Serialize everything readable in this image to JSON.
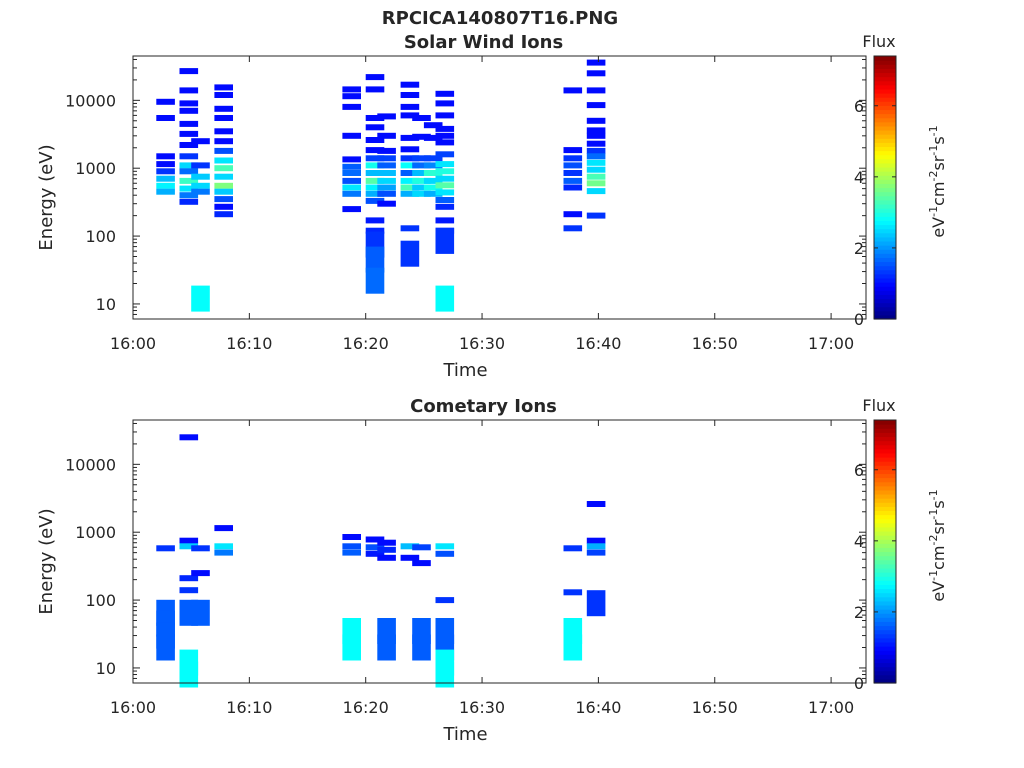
{
  "figure_title": "RPCICA140807T16.PNG",
  "colormap": [
    "#00007f",
    "#0000ff",
    "#007fff",
    "#00ffff",
    "#7fff7f",
    "#ffff00",
    "#ff7f00",
    "#ff0000",
    "#7f0000"
  ],
  "chart_data": [
    {
      "type": "heatmap",
      "title": "Solar Wind Ions",
      "xlabel": "Time",
      "ylabel": "Energy (eV)",
      "ylog": true,
      "xlim": [
        "16:00",
        "17:03"
      ],
      "ylim": [
        6,
        45000
      ],
      "x_ticks": [
        "16:00",
        "16:10",
        "16:20",
        "16:30",
        "16:40",
        "16:50",
        "17:00"
      ],
      "y_ticks": [
        "10",
        "100",
        "1000",
        "10000"
      ],
      "colorbar": {
        "label": "eV-1cm-2sr-1s-1",
        "title": "Flux",
        "range": [
          0,
          7.4
        ],
        "ticks": [
          "0",
          "2",
          "4",
          "6"
        ]
      },
      "cells": [
        [
          "16:02",
          9500,
          1
        ],
        [
          "16:02",
          5500,
          1
        ],
        [
          "16:02",
          1500,
          1
        ],
        [
          "16:02",
          1150,
          1
        ],
        [
          "16:02",
          900,
          1.3
        ],
        [
          "16:02",
          700,
          2.3
        ],
        [
          "16:02",
          550,
          2.7
        ],
        [
          "16:02",
          450,
          2.2
        ],
        [
          "16:04",
          27000,
          1
        ],
        [
          "16:04",
          14000,
          1
        ],
        [
          "16:04",
          9000,
          1
        ],
        [
          "16:04",
          7000,
          1
        ],
        [
          "16:04",
          4500,
          1
        ],
        [
          "16:04",
          3200,
          1
        ],
        [
          "16:04",
          2200,
          1
        ],
        [
          "16:04",
          1500,
          1.3
        ],
        [
          "16:04",
          1100,
          2.5
        ],
        [
          "16:04",
          900,
          1.7
        ],
        [
          "16:04",
          650,
          3.2
        ],
        [
          "16:04",
          500,
          2.6
        ],
        [
          "16:04",
          400,
          1.8
        ],
        [
          "16:04",
          320,
          1.2
        ],
        [
          "16:05",
          2500,
          1
        ],
        [
          "16:05",
          1100,
          1.3
        ],
        [
          "16:05",
          750,
          2.4
        ],
        [
          "16:05",
          550,
          2.5
        ],
        [
          "16:05",
          450,
          1.8
        ],
        [
          "16:05",
          12,
          2.8
        ],
        [
          "16:07",
          15500,
          1
        ],
        [
          "16:07",
          12000,
          1
        ],
        [
          "16:07",
          7500,
          1
        ],
        [
          "16:07",
          5500,
          1
        ],
        [
          "16:07",
          3500,
          1
        ],
        [
          "16:07",
          2500,
          1
        ],
        [
          "16:07",
          1800,
          1.5
        ],
        [
          "16:07",
          1300,
          2.6
        ],
        [
          "16:07",
          1000,
          3.3
        ],
        [
          "16:07",
          750,
          2.5
        ],
        [
          "16:07",
          550,
          3.7
        ],
        [
          "16:07",
          450,
          2.4
        ],
        [
          "16:07",
          350,
          1.5
        ],
        [
          "16:07",
          270,
          1
        ],
        [
          "16:07",
          210,
          1.2
        ],
        [
          "16:18",
          14500,
          1
        ],
        [
          "16:18",
          11500,
          1
        ],
        [
          "16:18",
          8000,
          1
        ],
        [
          "16:18",
          3000,
          1
        ],
        [
          "16:18",
          1350,
          1
        ],
        [
          "16:18",
          1050,
          1.6
        ],
        [
          "16:18",
          850,
          1.7
        ],
        [
          "16:18",
          650,
          1.5
        ],
        [
          "16:18",
          520,
          2.6
        ],
        [
          "16:18",
          420,
          1.8
        ],
        [
          "16:18",
          250,
          1
        ],
        [
          "16:20",
          22000,
          1
        ],
        [
          "16:20",
          14500,
          1
        ],
        [
          "16:20",
          5500,
          1
        ],
        [
          "16:20",
          4000,
          1
        ],
        [
          "16:20",
          2600,
          1
        ],
        [
          "16:20",
          1850,
          1
        ],
        [
          "16:20",
          1400,
          1.4
        ],
        [
          "16:20",
          1100,
          2.9
        ],
        [
          "16:20",
          850,
          2.3
        ],
        [
          "16:20",
          650,
          3.4
        ],
        [
          "16:20",
          520,
          2.7
        ],
        [
          "16:20",
          420,
          2.2
        ],
        [
          "16:20",
          330,
          1.5
        ],
        [
          "16:20",
          170,
          1.1
        ],
        [
          "16:20",
          120,
          1.2
        ],
        [
          "16:20",
          75,
          1.3
        ],
        [
          "16:20",
          45,
          1.6
        ],
        [
          "16:20",
          22,
          1.7
        ],
        [
          "16:21",
          5800,
          1
        ],
        [
          "16:21",
          3000,
          1
        ],
        [
          "16:21",
          1800,
          1
        ],
        [
          "16:21",
          1400,
          1.4
        ],
        [
          "16:21",
          1100,
          1.6
        ],
        [
          "16:21",
          850,
          2.3
        ],
        [
          "16:21",
          650,
          2.5
        ],
        [
          "16:21",
          520,
          2.1
        ],
        [
          "16:21",
          420,
          1.5
        ],
        [
          "16:21",
          300,
          1
        ],
        [
          "16:23",
          17000,
          1
        ],
        [
          "16:23",
          12000,
          1
        ],
        [
          "16:23",
          8000,
          1
        ],
        [
          "16:23",
          6000,
          1
        ],
        [
          "16:23",
          2800,
          1
        ],
        [
          "16:23",
          1900,
          1
        ],
        [
          "16:23",
          1400,
          1.3
        ],
        [
          "16:23",
          1100,
          2.8
        ],
        [
          "16:23",
          850,
          1.6
        ],
        [
          "16:23",
          650,
          2.7
        ],
        [
          "16:23",
          520,
          3.3
        ],
        [
          "16:23",
          420,
          2.2
        ],
        [
          "16:23",
          130,
          1.3
        ],
        [
          "16:23",
          55,
          1.3
        ],
        [
          "16:24",
          5500,
          1
        ],
        [
          "16:24",
          2900,
          1
        ],
        [
          "16:24",
          1400,
          1.4
        ],
        [
          "16:24",
          1100,
          1.7
        ],
        [
          "16:24",
          850,
          2.3
        ],
        [
          "16:24",
          650,
          3.0
        ],
        [
          "16:24",
          520,
          2.4
        ],
        [
          "16:24",
          420,
          2.5
        ],
        [
          "16:25",
          4300,
          1
        ],
        [
          "16:25",
          2800,
          1
        ],
        [
          "16:25",
          1400,
          1.4
        ],
        [
          "16:25",
          1100,
          1.9
        ],
        [
          "16:25",
          850,
          3.1
        ],
        [
          "16:25",
          650,
          2.5
        ],
        [
          "16:25",
          520,
          2.9
        ],
        [
          "16:25",
          420,
          2.2
        ],
        [
          "16:26",
          12500,
          1
        ],
        [
          "16:26",
          9000,
          1
        ],
        [
          "16:26",
          6000,
          1
        ],
        [
          "16:26",
          3800,
          1
        ],
        [
          "16:26",
          3000,
          1
        ],
        [
          "16:26",
          2400,
          1
        ],
        [
          "16:26",
          1600,
          1.4
        ],
        [
          "16:26",
          1150,
          2.6
        ],
        [
          "16:26",
          900,
          3.0
        ],
        [
          "16:26",
          700,
          2.5
        ],
        [
          "16:26",
          560,
          3.4
        ],
        [
          "16:26",
          440,
          2.6
        ],
        [
          "16:26",
          340,
          1.6
        ],
        [
          "16:26",
          270,
          1.2
        ],
        [
          "16:26",
          170,
          1.1
        ],
        [
          "16:26",
          120,
          1.1
        ],
        [
          "16:26",
          85,
          1.3
        ],
        [
          "16:26",
          12,
          2.8
        ],
        [
          "16:37",
          14000,
          1
        ],
        [
          "16:37",
          1850,
          1
        ],
        [
          "16:37",
          1400,
          1.3
        ],
        [
          "16:37",
          1100,
          1.5
        ],
        [
          "16:37",
          850,
          1.3
        ],
        [
          "16:37",
          650,
          1.6
        ],
        [
          "16:37",
          520,
          1.2
        ],
        [
          "16:37",
          210,
          1
        ],
        [
          "16:37",
          130,
          1.3
        ],
        [
          "16:39",
          36000,
          1
        ],
        [
          "16:39",
          25000,
          1
        ],
        [
          "16:39",
          14000,
          1
        ],
        [
          "16:39",
          8500,
          1
        ],
        [
          "16:39",
          5000,
          1
        ],
        [
          "16:39",
          3600,
          1
        ],
        [
          "16:39",
          3000,
          1
        ],
        [
          "16:39",
          2300,
          1
        ],
        [
          "16:39",
          1800,
          1.3
        ],
        [
          "16:39",
          1500,
          1.7
        ],
        [
          "16:39",
          1200,
          2.6
        ],
        [
          "16:39",
          950,
          2.5
        ],
        [
          "16:39",
          750,
          3.3
        ],
        [
          "16:39",
          600,
          3.6
        ],
        [
          "16:39",
          460,
          2.5
        ],
        [
          "16:39",
          200,
          1.3
        ]
      ]
    },
    {
      "type": "heatmap",
      "title": "Cometary Ions",
      "xlabel": "Time",
      "ylabel": "Energy (eV)",
      "ylog": true,
      "xlim": [
        "16:00",
        "17:03"
      ],
      "ylim": [
        6,
        45000
      ],
      "x_ticks": [
        "16:00",
        "16:10",
        "16:20",
        "16:30",
        "16:40",
        "16:50",
        "17:00"
      ],
      "y_ticks": [
        "10",
        "100",
        "1000",
        "10000"
      ],
      "colorbar": {
        "label": "eV-1cm-2sr-1s-1",
        "title": "Flux",
        "range": [
          0,
          7.4
        ],
        "ticks": [
          "0",
          "2",
          "4",
          "6"
        ]
      },
      "cells": [
        [
          "16:02",
          580,
          1.3
        ],
        [
          "16:02",
          65,
          1.6
        ],
        [
          "16:02",
          45,
          1.6
        ],
        [
          "16:02",
          30,
          1.6
        ],
        [
          "16:02",
          20,
          1.6
        ],
        [
          "16:04",
          25000,
          1
        ],
        [
          "16:04",
          750,
          1
        ],
        [
          "16:04",
          620,
          2.4
        ],
        [
          "16:04",
          210,
          1.2
        ],
        [
          "16:04",
          140,
          1.3
        ],
        [
          "16:04",
          65,
          1.6
        ],
        [
          "16:04",
          12,
          2.8
        ],
        [
          "16:04",
          8,
          2.8
        ],
        [
          "16:05",
          580,
          1.3
        ],
        [
          "16:05",
          250,
          1
        ],
        [
          "16:05",
          65,
          1.6
        ],
        [
          "16:07",
          1150,
          1
        ],
        [
          "16:07",
          620,
          2.6
        ],
        [
          "16:07",
          500,
          1.8
        ],
        [
          "16:18",
          850,
          1
        ],
        [
          "16:18",
          620,
          1.5
        ],
        [
          "16:18",
          500,
          1.6
        ],
        [
          "16:18",
          35,
          2.8
        ],
        [
          "16:18",
          20,
          2.8
        ],
        [
          "16:20",
          780,
          1
        ],
        [
          "16:20",
          600,
          1.5
        ],
        [
          "16:20",
          480,
          1.1
        ],
        [
          "16:21",
          700,
          1
        ],
        [
          "16:21",
          550,
          1.2
        ],
        [
          "16:21",
          420,
          1
        ],
        [
          "16:21",
          35,
          1.6
        ],
        [
          "16:21",
          20,
          1.6
        ],
        [
          "16:23",
          620,
          2.3
        ],
        [
          "16:23",
          420,
          1
        ],
        [
          "16:24",
          600,
          1.4
        ],
        [
          "16:24",
          350,
          1
        ],
        [
          "16:24",
          35,
          1.6
        ],
        [
          "16:24",
          20,
          1.6
        ],
        [
          "16:26",
          620,
          2.6
        ],
        [
          "16:26",
          480,
          1.5
        ],
        [
          "16:26",
          100,
          1.3
        ],
        [
          "16:26",
          35,
          1.6
        ],
        [
          "16:26",
          20,
          1.6
        ],
        [
          "16:26",
          12,
          2.8
        ],
        [
          "16:26",
          8,
          2.8
        ],
        [
          "16:37",
          580,
          1.3
        ],
        [
          "16:37",
          130,
          1.3
        ],
        [
          "16:37",
          35,
          2.8
        ],
        [
          "16:37",
          20,
          2.8
        ],
        [
          "16:39",
          2600,
          1
        ],
        [
          "16:39",
          750,
          1
        ],
        [
          "16:39",
          620,
          2.2
        ],
        [
          "16:39",
          500,
          1.4
        ],
        [
          "16:39",
          90,
          1.3
        ]
      ]
    }
  ]
}
